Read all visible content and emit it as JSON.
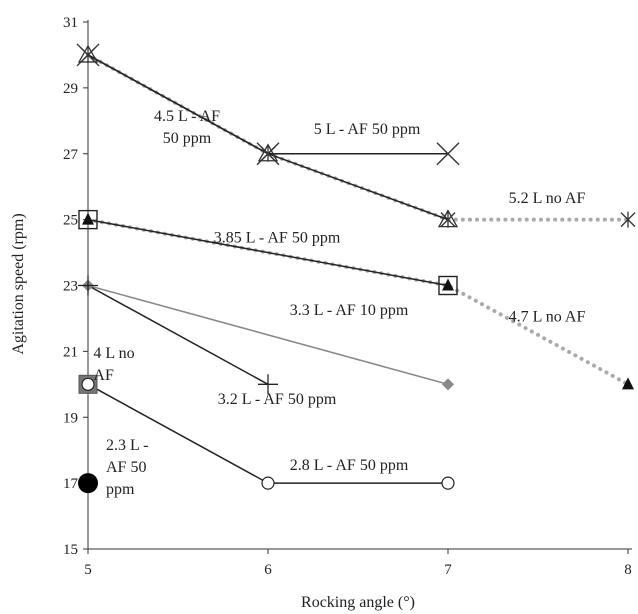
{
  "chart_data": {
    "type": "line",
    "xlabel": "Rocking angle (°)",
    "ylabel": "Agitation speed (rpm)",
    "xlim": [
      5,
      8
    ],
    "ylim": [
      15,
      31
    ],
    "xticks": [
      5,
      6,
      7,
      8
    ],
    "yticks": [
      15,
      17,
      19,
      21,
      23,
      25,
      27,
      29,
      31
    ],
    "grid": false,
    "legend": "none",
    "series": [
      {
        "name": "5.2 L no AF",
        "color": "#aaaaaa",
        "dash": "dotted",
        "marker": "star",
        "points": [
          [
            5,
            30
          ],
          [
            6,
            27
          ],
          [
            7,
            25
          ],
          [
            8,
            25
          ]
        ]
      },
      {
        "name": "4.7 L no AF",
        "color": "#aaaaaa",
        "dash": "dotted",
        "marker": "triangle-filled",
        "points": [
          [
            5,
            25
          ],
          [
            7,
            23
          ],
          [
            8,
            20
          ]
        ]
      },
      {
        "name": "4.5 L - AF 50 ppm",
        "color": "#222222",
        "dash": "solid",
        "marker": "triangle-open",
        "points": [
          [
            5,
            30
          ],
          [
            6,
            27
          ],
          [
            7,
            25
          ]
        ]
      },
      {
        "name": "5 L - AF 50 ppm",
        "color": "#222222",
        "dash": "solid",
        "marker": "x",
        "points": [
          [
            5,
            30
          ],
          [
            6,
            27
          ],
          [
            7,
            27
          ]
        ]
      },
      {
        "name": "3.85 L - AF 50 ppm",
        "color": "#222222",
        "dash": "solid",
        "marker": "square-open",
        "points": [
          [
            5,
            25
          ],
          [
            7,
            23
          ]
        ]
      },
      {
        "name": "3.3 L - AF 10 ppm",
        "color": "#888888",
        "dash": "solid",
        "marker": "diamond",
        "points": [
          [
            5,
            23
          ],
          [
            7,
            20
          ]
        ]
      },
      {
        "name": "3.2 L - AF 50 ppm",
        "color": "#222222",
        "dash": "solid",
        "marker": "plus",
        "points": [
          [
            5,
            23
          ],
          [
            6,
            20
          ]
        ]
      },
      {
        "name": "4 L no AF",
        "color": "#777777",
        "dash": "solid",
        "marker": "square-filled",
        "points": [
          [
            5,
            20
          ]
        ]
      },
      {
        "name": "2.8 L - AF 50 ppm",
        "color": "#222222",
        "dash": "solid",
        "marker": "circle-open",
        "points": [
          [
            5,
            20
          ],
          [
            6,
            17
          ],
          [
            7,
            17
          ]
        ]
      },
      {
        "name": "2.3 L - AF 50 ppm",
        "color": "#000000",
        "dash": "solid",
        "marker": "circle-filled",
        "points": [
          [
            5,
            17
          ]
        ]
      }
    ],
    "annotations": [
      {
        "lines": [
          "4.5 L - AF",
          "50 ppm"
        ],
        "x": 5.55,
        "y": 28.0,
        "anchor": "middle"
      },
      {
        "lines": [
          "5 L - AF 50 ppm"
        ],
        "x": 6.55,
        "y": 27.6,
        "anchor": "middle"
      },
      {
        "lines": [
          "5.2 L no AF"
        ],
        "x": 7.55,
        "y": 25.5,
        "anchor": "middle"
      },
      {
        "lines": [
          "3.85 L - AF 50 ppm"
        ],
        "x": 6.05,
        "y": 24.3,
        "anchor": "middle"
      },
      {
        "lines": [
          "4.7 L no AF"
        ],
        "x": 7.55,
        "y": 21.9,
        "anchor": "middle"
      },
      {
        "lines": [
          "3.3 L - AF 10 ppm"
        ],
        "x": 6.45,
        "y": 22.1,
        "anchor": "middle"
      },
      {
        "lines": [
          "4 L no",
          "AF"
        ],
        "x": 5.03,
        "y": 20.8,
        "anchor": "start"
      },
      {
        "lines": [
          "3.2 L - AF 50 ppm"
        ],
        "x": 6.05,
        "y": 19.4,
        "anchor": "middle"
      },
      {
        "lines": [
          "2.8 L - AF 50 ppm"
        ],
        "x": 6.45,
        "y": 17.4,
        "anchor": "middle"
      },
      {
        "lines": [
          "2.3 L -",
          "AF 50",
          "ppm"
        ],
        "x": 5.1,
        "y": 18.0,
        "anchor": "start"
      }
    ]
  }
}
